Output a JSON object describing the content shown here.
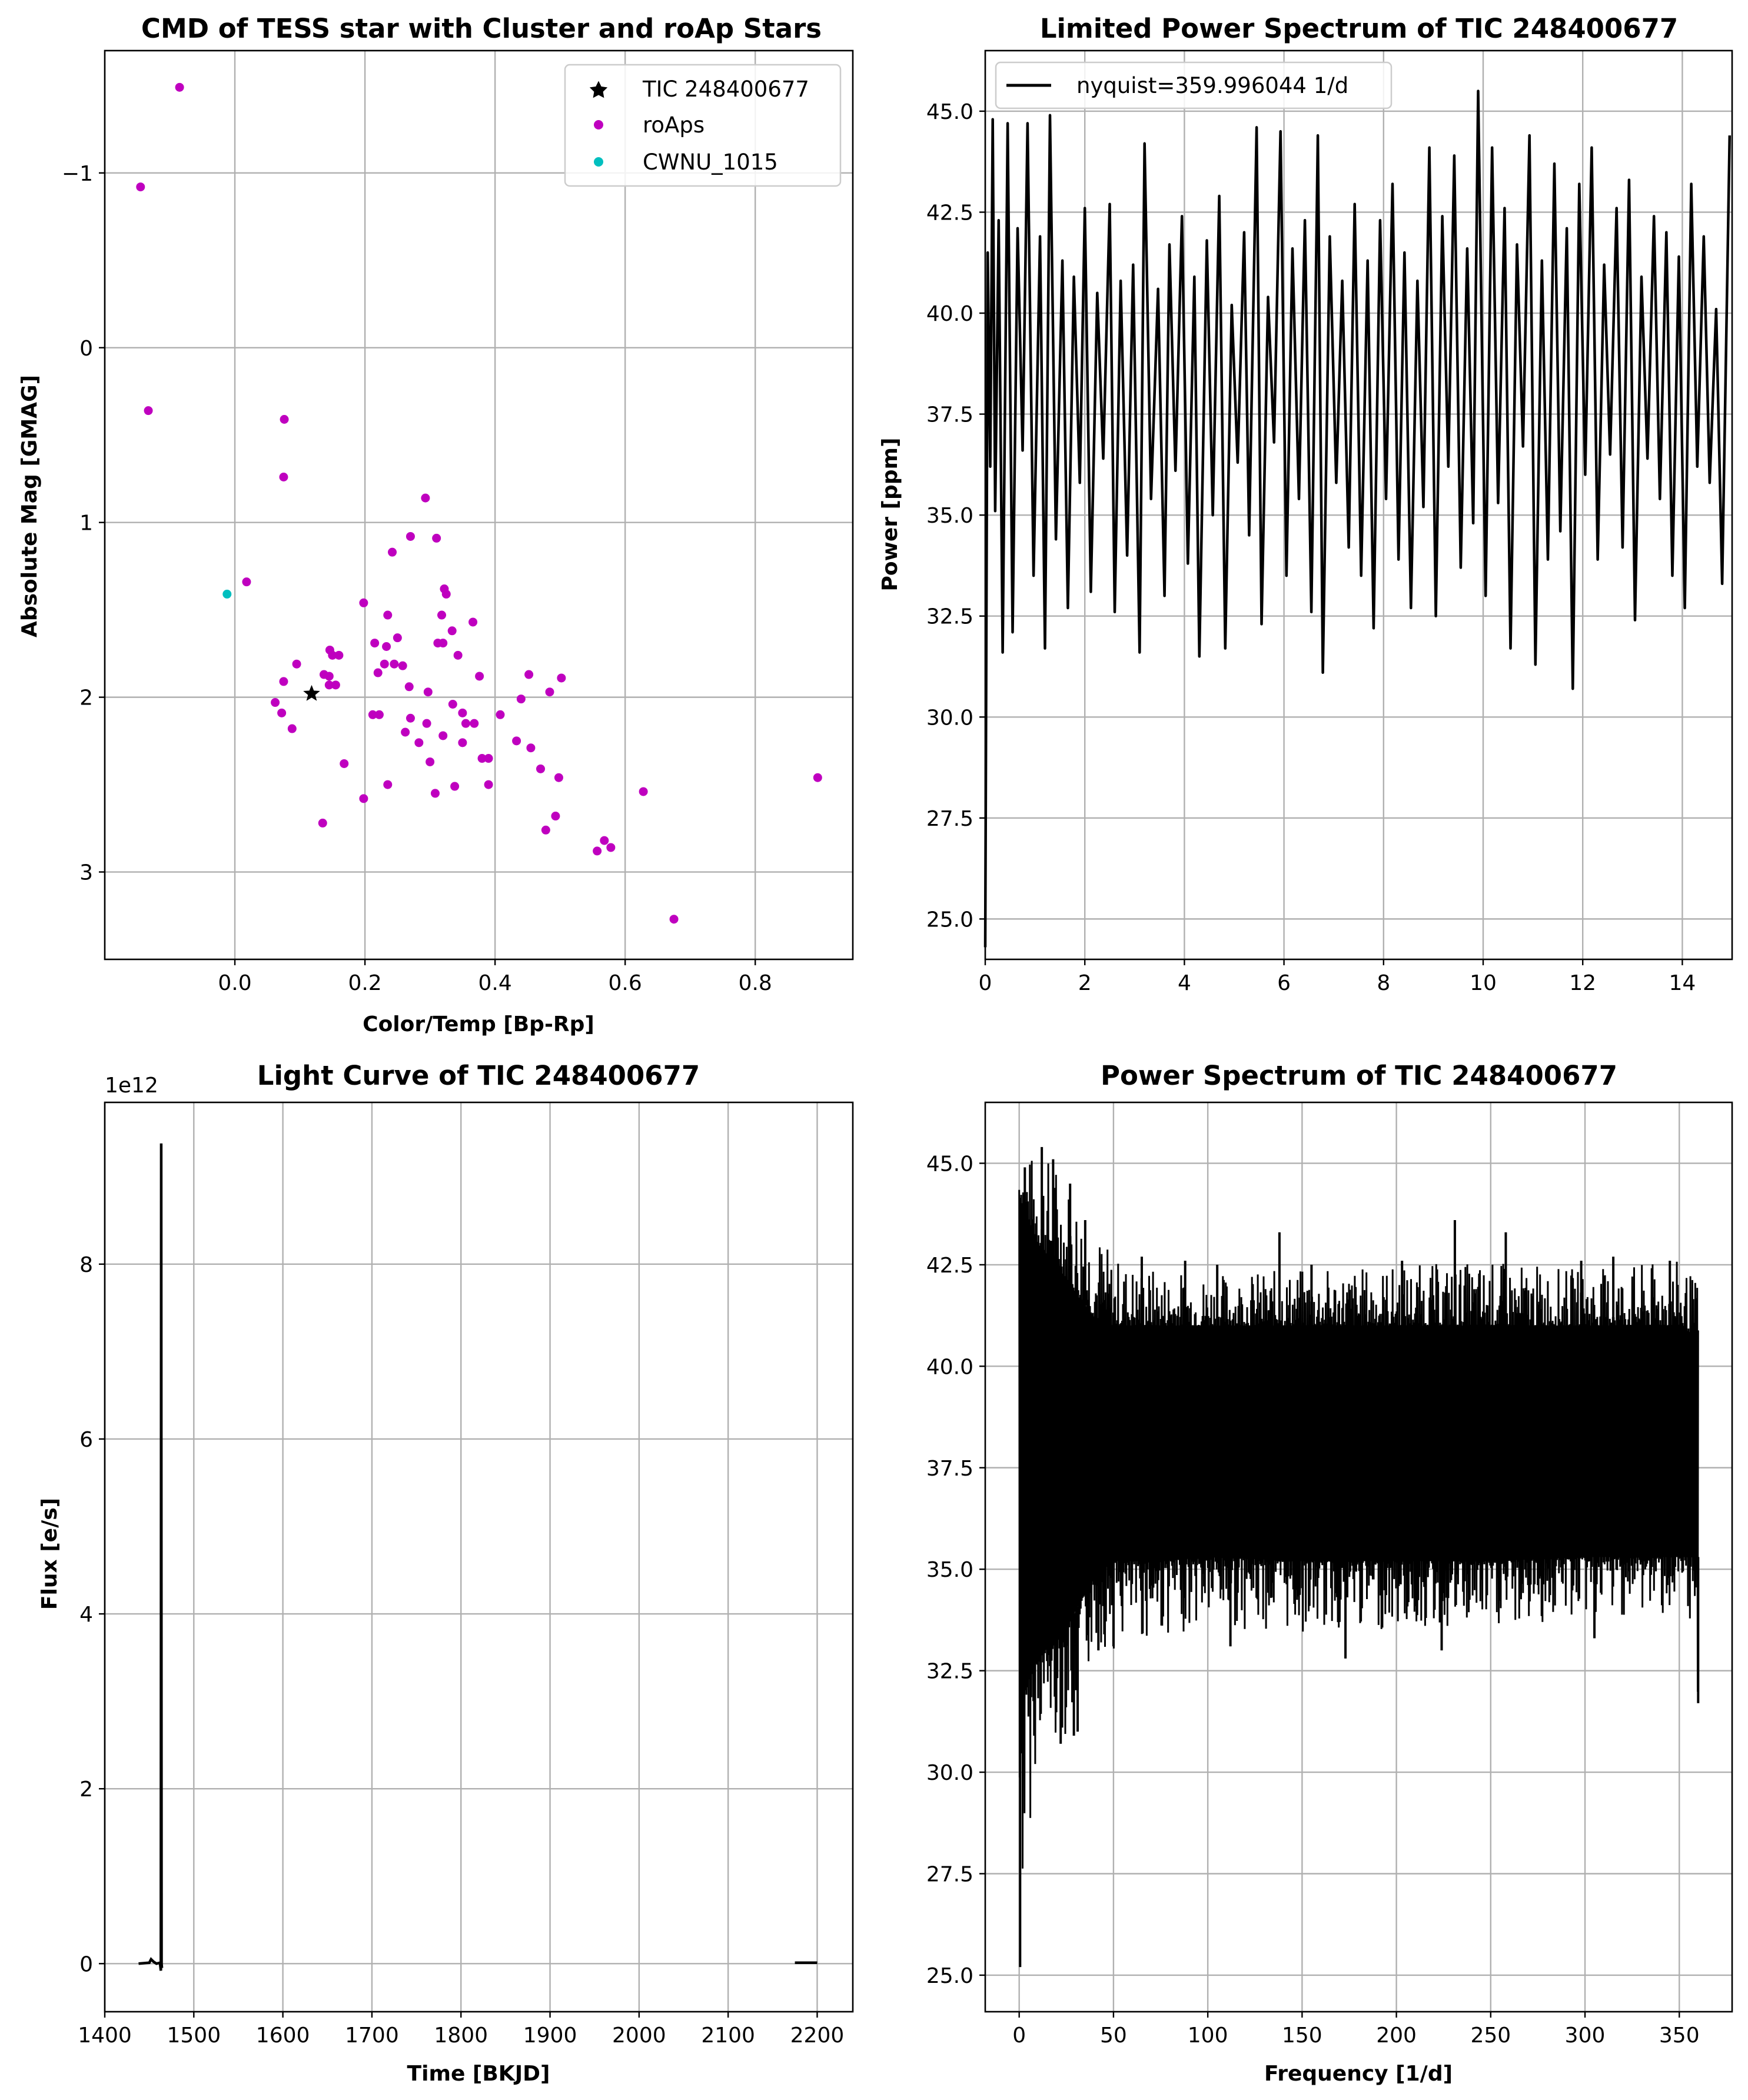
{
  "chart_data": [
    {
      "type": "scatter",
      "title": "CMD of TESS star with Cluster and roAp Stars",
      "xlabel": "Color/Temp [Bp-Rp]",
      "ylabel": "Absolute Mag [GMAG]",
      "xlim": [
        -0.2,
        0.95
      ],
      "ylim": [
        3.5,
        -1.7
      ],
      "y_inverted": true,
      "grid": true,
      "legend_position": "top-right",
      "xticks": [
        0.0,
        0.2,
        0.4,
        0.6,
        0.8
      ],
      "xtick_labels": [
        "0.0",
        "0.2",
        "0.4",
        "0.6",
        "0.8"
      ],
      "yticks": [
        -1,
        0,
        1,
        2,
        3
      ],
      "ytick_labels": [
        "−1",
        "0",
        "1",
        "2",
        "3"
      ],
      "series": [
        {
          "name": "TIC 248400677",
          "color": "#000000",
          "marker": "star",
          "points": [
            [
              0.118,
              1.98
            ]
          ]
        },
        {
          "name": "roAps",
          "color": "#bf00bf",
          "marker": "circle",
          "points": [
            [
              -0.085,
              -1.49
            ],
            [
              -0.145,
              -0.92
            ],
            [
              -0.133,
              0.36
            ],
            [
              0.076,
              0.41
            ],
            [
              0.075,
              0.74
            ],
            [
              0.018,
              1.34
            ],
            [
              0.293,
              0.86
            ],
            [
              0.27,
              1.08
            ],
            [
              0.31,
              1.09
            ],
            [
              0.242,
              1.17
            ],
            [
              0.322,
              1.38
            ],
            [
              0.325,
              1.41
            ],
            [
              0.198,
              1.46
            ],
            [
              0.235,
              1.53
            ],
            [
              0.318,
              1.53
            ],
            [
              0.366,
              1.57
            ],
            [
              0.334,
              1.62
            ],
            [
              0.215,
              1.69
            ],
            [
              0.25,
              1.66
            ],
            [
              0.233,
              1.71
            ],
            [
              0.312,
              1.69
            ],
            [
              0.32,
              1.69
            ],
            [
              0.146,
              1.73
            ],
            [
              0.15,
              1.76
            ],
            [
              0.16,
              1.76
            ],
            [
              0.343,
              1.76
            ],
            [
              0.095,
              1.81
            ],
            [
              0.23,
              1.81
            ],
            [
              0.245,
              1.81
            ],
            [
              0.258,
              1.82
            ],
            [
              0.137,
              1.87
            ],
            [
              0.22,
              1.86
            ],
            [
              0.145,
              1.88
            ],
            [
              0.376,
              1.88
            ],
            [
              0.452,
              1.87
            ],
            [
              0.502,
              1.89
            ],
            [
              0.075,
              1.91
            ],
            [
              0.145,
              1.93
            ],
            [
              0.155,
              1.93
            ],
            [
              0.268,
              1.94
            ],
            [
              0.297,
              1.97
            ],
            [
              0.484,
              1.97
            ],
            [
              0.44,
              2.01
            ],
            [
              0.062,
              2.03
            ],
            [
              0.335,
              2.04
            ],
            [
              0.072,
              2.09
            ],
            [
              0.212,
              2.1
            ],
            [
              0.222,
              2.1
            ],
            [
              0.35,
              2.09
            ],
            [
              0.408,
              2.1
            ],
            [
              0.27,
              2.12
            ],
            [
              0.295,
              2.15
            ],
            [
              0.355,
              2.15
            ],
            [
              0.368,
              2.15
            ],
            [
              0.088,
              2.18
            ],
            [
              0.262,
              2.2
            ],
            [
              0.32,
              2.22
            ],
            [
              0.433,
              2.25
            ],
            [
              0.283,
              2.26
            ],
            [
              0.35,
              2.26
            ],
            [
              0.455,
              2.29
            ],
            [
              0.38,
              2.35
            ],
            [
              0.39,
              2.35
            ],
            [
              0.168,
              2.38
            ],
            [
              0.3,
              2.37
            ],
            [
              0.47,
              2.41
            ],
            [
              0.498,
              2.46
            ],
            [
              0.896,
              2.46
            ],
            [
              0.235,
              2.5
            ],
            [
              0.338,
              2.51
            ],
            [
              0.39,
              2.5
            ],
            [
              0.628,
              2.54
            ],
            [
              0.308,
              2.55
            ],
            [
              0.198,
              2.58
            ],
            [
              0.493,
              2.68
            ],
            [
              0.135,
              2.72
            ],
            [
              0.478,
              2.76
            ],
            [
              0.568,
              2.82
            ],
            [
              0.578,
              2.86
            ],
            [
              0.557,
              2.88
            ],
            [
              0.675,
              3.27
            ]
          ]
        },
        {
          "name": "CWNU_1015",
          "color": "#00bfbf",
          "marker": "circle",
          "points": [
            [
              -0.012,
              1.41
            ]
          ]
        }
      ]
    },
    {
      "type": "line",
      "title": "Limited Power Spectrum of TIC 248400677",
      "xlabel": "",
      "ylabel": "Power [ppm]",
      "xlim": [
        0,
        15
      ],
      "ylim": [
        24.0,
        46.5
      ],
      "grid": true,
      "legend_position": "top-left",
      "xticks": [
        0,
        2,
        4,
        6,
        8,
        10,
        12,
        14
      ],
      "xtick_labels": [
        "0",
        "2",
        "4",
        "6",
        "8",
        "10",
        "12",
        "14"
      ],
      "yticks": [
        25.0,
        27.5,
        30.0,
        32.5,
        35.0,
        37.5,
        40.0,
        42.5,
        45.0
      ],
      "ytick_labels": [
        "25.0",
        "27.5",
        "30.0",
        "32.5",
        "35.0",
        "37.5",
        "40.0",
        "42.5",
        "45.0"
      ],
      "series": [
        {
          "name": "nyquist=359.996044 1/d",
          "color": "#000000",
          "x": [
            0.0,
            0.05,
            0.1,
            0.15,
            0.2,
            0.27,
            0.35,
            0.45,
            0.55,
            0.65,
            0.75,
            0.85,
            0.97,
            1.1,
            1.2,
            1.3,
            1.42,
            1.55,
            1.66,
            1.78,
            1.9,
            2.0,
            2.12,
            2.25,
            2.37,
            2.5,
            2.6,
            2.72,
            2.85,
            2.97,
            3.1,
            3.2,
            3.33,
            3.47,
            3.6,
            3.7,
            3.82,
            3.95,
            4.07,
            4.2,
            4.3,
            4.45,
            4.57,
            4.7,
            4.82,
            4.95,
            5.07,
            5.2,
            5.3,
            5.45,
            5.55,
            5.68,
            5.8,
            5.93,
            6.05,
            6.17,
            6.3,
            6.42,
            6.55,
            6.68,
            6.78,
            6.92,
            7.05,
            7.17,
            7.3,
            7.42,
            7.55,
            7.68,
            7.8,
            7.93,
            8.05,
            8.18,
            8.3,
            8.42,
            8.55,
            8.68,
            8.8,
            8.92,
            9.05,
            9.18,
            9.3,
            9.42,
            9.55,
            9.68,
            9.8,
            9.9,
            10.05,
            10.18,
            10.3,
            10.43,
            10.55,
            10.68,
            10.8,
            10.93,
            11.05,
            11.18,
            11.3,
            11.43,
            11.55,
            11.68,
            11.8,
            11.93,
            12.05,
            12.18,
            12.3,
            12.43,
            12.55,
            12.68,
            12.8,
            12.93,
            13.05,
            13.18,
            13.3,
            13.43,
            13.55,
            13.68,
            13.8,
            13.93,
            14.05,
            14.18,
            14.3,
            14.43,
            14.55,
            14.68,
            14.8,
            14.95
          ],
          "values": [
            24.3,
            41.5,
            36.2,
            44.8,
            35.1,
            42.3,
            31.6,
            44.7,
            32.1,
            42.1,
            36.6,
            44.7,
            33.5,
            41.9,
            31.7,
            44.9,
            34.4,
            41.3,
            32.7,
            40.9,
            35.8,
            42.6,
            33.1,
            40.5,
            36.4,
            42.7,
            32.6,
            40.8,
            34.0,
            41.2,
            31.6,
            44.2,
            35.4,
            40.6,
            33.0,
            41.7,
            36.1,
            42.4,
            33.8,
            40.9,
            31.5,
            41.8,
            35.0,
            42.9,
            31.7,
            40.2,
            36.3,
            42.0,
            34.5,
            44.6,
            32.3,
            40.4,
            36.8,
            44.5,
            33.5,
            41.6,
            35.4,
            42.3,
            32.6,
            44.4,
            31.1,
            41.9,
            35.8,
            40.8,
            34.2,
            42.7,
            33.5,
            41.3,
            32.2,
            42.3,
            35.4,
            43.2,
            33.9,
            41.5,
            32.7,
            40.8,
            35.2,
            44.1,
            32.5,
            42.4,
            36.2,
            43.9,
            33.7,
            41.6,
            34.8,
            45.5,
            33.0,
            44.1,
            35.3,
            42.6,
            31.7,
            41.7,
            36.7,
            44.4,
            31.3,
            41.3,
            33.9,
            43.7,
            34.6,
            42.1,
            30.7,
            43.2,
            36.0,
            44.1,
            33.9,
            41.2,
            36.5,
            42.6,
            34.2,
            43.3,
            32.4,
            40.9,
            36.4,
            42.4,
            35.4,
            42.0,
            33.5,
            41.4,
            32.7,
            43.2,
            36.2,
            41.9,
            35.8,
            40.1,
            33.3,
            44.4
          ]
        }
      ]
    },
    {
      "type": "line",
      "title": "Light Curve of TIC 248400677",
      "xlabel": "Time [BKJD]",
      "ylabel": "Flux [e/s]",
      "offset_text": "1e12",
      "xlim": [
        1400,
        2240
      ],
      "ylim": [
        -0.55,
        9.85
      ],
      "grid": true,
      "xticks": [
        1400,
        1500,
        1600,
        1700,
        1800,
        1900,
        2000,
        2100,
        2200
      ],
      "xtick_labels": [
        "1400",
        "1500",
        "1600",
        "1700",
        "1800",
        "1900",
        "2000",
        "2100",
        "2200"
      ],
      "yticks": [
        0,
        2,
        4,
        6,
        8
      ],
      "ytick_labels": [
        "0",
        "2",
        "4",
        "6",
        "8"
      ],
      "series": [
        {
          "name": "",
          "color": "#000000",
          "segments": [
            {
              "x": [
                1438,
                1450,
                1452,
                1455,
                1458,
                1462,
                1463,
                1463.4,
                1463.8,
                1464.2
              ],
              "values": [
                0.0,
                0.01,
                0.05,
                0.02,
                0.0,
                0.01,
                -0.08,
                9.38,
                0.0,
                -0.05
              ]
            },
            {
              "x": [
                2175,
                2200
              ],
              "values": [
                0.01,
                0.01
              ]
            }
          ]
        }
      ]
    },
    {
      "type": "line",
      "title": "Power Spectrum of TIC 248400677",
      "xlabel": "Frequency [1/d]",
      "ylabel": "",
      "xlim": [
        -18,
        378
      ],
      "ylim": [
        24.1,
        46.5
      ],
      "grid": true,
      "xticks": [
        0,
        50,
        100,
        150,
        200,
        250,
        300,
        350
      ],
      "xtick_labels": [
        "0",
        "50",
        "100",
        "150",
        "200",
        "250",
        "300",
        "350"
      ],
      "yticks": [
        25.0,
        27.5,
        30.0,
        32.5,
        35.0,
        37.5,
        40.0,
        42.5,
        45.0
      ],
      "ytick_labels": [
        "25.0",
        "27.5",
        "30.0",
        "32.5",
        "35.0",
        "37.5",
        "40.0",
        "42.5",
        "45.0"
      ],
      "series": [
        {
          "name": "",
          "color": "#000000",
          "x_range": [
            0,
            360
          ],
          "x": [
            0,
            10,
            20,
            30,
            40,
            50,
            75,
            100,
            150,
            200,
            250,
            300,
            350,
            360
          ],
          "upper": [
            44.9,
            45.4,
            45.1,
            44.4,
            43.6,
            42.7,
            42.4,
            42.3,
            42.4,
            42.5,
            42.6,
            42.4,
            42.6,
            42.1
          ],
          "lower": [
            25.2,
            31.0,
            30.8,
            31.0,
            33.1,
            33.0,
            33.3,
            33.6,
            33.4,
            33.5,
            33.4,
            33.8,
            33.9,
            31.7
          ],
          "band_top": [
            44.2,
            43.0,
            42.5,
            41.8,
            41.2,
            41.0,
            41.0,
            41.0,
            41.0,
            41.0,
            41.0,
            41.0,
            41.0,
            40.7
          ],
          "band_bottom": [
            31.6,
            32.9,
            33.2,
            34.0,
            34.8,
            35.2,
            35.2,
            35.3,
            35.2,
            35.2,
            35.2,
            35.3,
            35.3,
            35.3
          ],
          "spikes": [
            [
              0.5,
              25.2
            ],
            [
              3,
              44.9
            ],
            [
              8,
              30.9
            ],
            [
              12,
              45.4
            ],
            [
              18,
              45.1
            ],
            [
              22,
              30.7
            ],
            [
              27,
              44.5
            ],
            [
              29,
              30.9
            ],
            [
              31,
              31.0
            ],
            [
              35,
              43.6
            ],
            [
              42,
              33.0
            ],
            [
              50,
              33.1
            ],
            [
              65,
              42.7
            ],
            [
              88,
              42.6
            ],
            [
              105,
              42.5
            ],
            [
              112,
              33.1
            ],
            [
              138,
              43.3
            ],
            [
              155,
              42.5
            ],
            [
              173,
              32.8
            ],
            [
              203,
              42.6
            ],
            [
              224,
              33.0
            ],
            [
              231,
              43.6
            ],
            [
              258,
              43.3
            ],
            [
              298,
              42.6
            ],
            [
              305,
              33.3
            ],
            [
              315,
              42.7
            ],
            [
              345,
              42.6
            ],
            [
              360,
              31.7
            ]
          ]
        }
      ]
    }
  ]
}
